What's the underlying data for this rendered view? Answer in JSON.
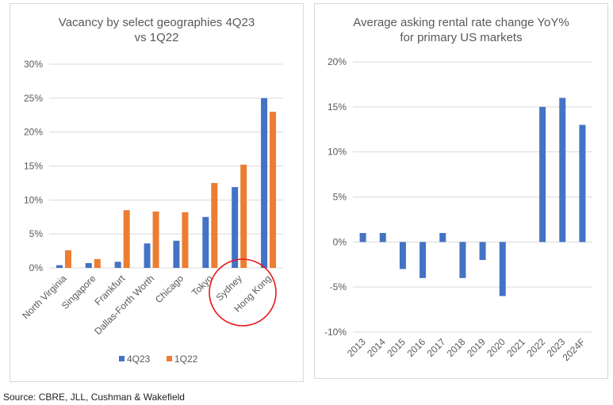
{
  "chart_data": [
    {
      "type": "bar",
      "title": "Vacancy by select geographies 4Q23 vs 1Q22",
      "title_lines": [
        "Vacancy by select geographies 4Q23",
        "vs 1Q22"
      ],
      "categories": [
        "North Virginia",
        "Singapore",
        "Frankfurt",
        "Dallas-Forth Worth",
        "Chicago",
        "Tokyo",
        "Sydney",
        "Hong Kong"
      ],
      "series": [
        {
          "name": "4Q23",
          "color": "#4472c4",
          "values": [
            0.4,
            0.7,
            0.9,
            3.6,
            4.0,
            7.5,
            11.9,
            25.0
          ]
        },
        {
          "name": "1Q22",
          "color": "#ed7d31",
          "values": [
            2.6,
            1.3,
            8.5,
            8.3,
            8.2,
            12.5,
            15.2,
            23.0
          ]
        }
      ],
      "ylim": [
        0,
        30
      ],
      "yticks": [
        "0%",
        "5%",
        "10%",
        "15%",
        "20%",
        "25%",
        "30%"
      ],
      "grid": true,
      "legend": "bottom",
      "annotation": "red circle highlighting Sydney and Hong Kong"
    },
    {
      "type": "bar",
      "title": "Average asking rental rate change YoY% for primary US markets",
      "title_lines": [
        "Average asking rental rate change YoY%",
        "for primary US markets"
      ],
      "categories": [
        "2013",
        "2014",
        "2015",
        "2016",
        "2017",
        "2018",
        "2019",
        "2020",
        "2021",
        "2022",
        "2023",
        "2024F"
      ],
      "series": [
        {
          "color": "#4472c4",
          "values": [
            1,
            1,
            -3,
            -4,
            1,
            -4,
            -2,
            -6,
            0,
            15,
            16,
            13
          ]
        }
      ],
      "ylim": [
        -10,
        20
      ],
      "yticks": [
        "-10%",
        "-5%",
        "0%",
        "5%",
        "10%",
        "15%",
        "20%"
      ],
      "grid": true
    }
  ],
  "source": "Source: CBRE, JLL, Cushman & Wakefield"
}
